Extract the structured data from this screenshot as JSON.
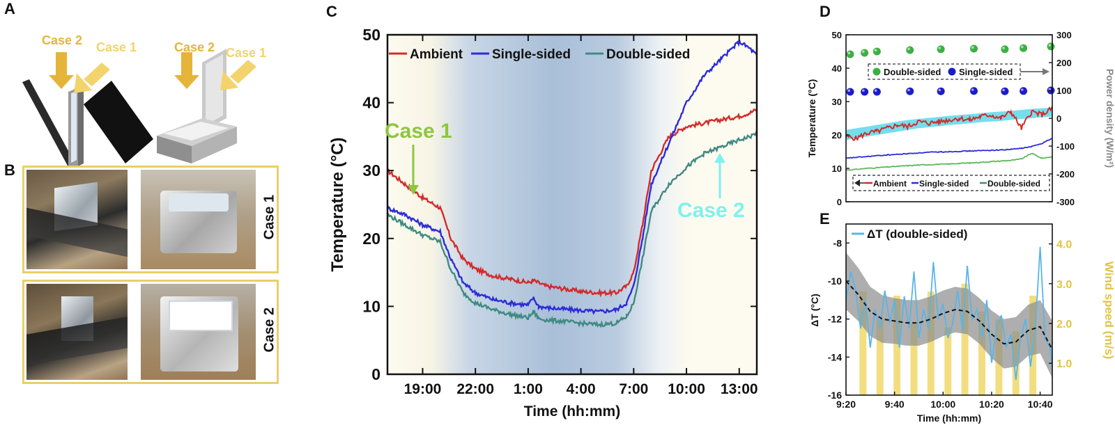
{
  "panels": {
    "a": {
      "label": "A",
      "left_case2": "Case 2",
      "left_case1": "Case 1",
      "right_case2": "Case 2",
      "right_case1": "Case 1"
    },
    "b": {
      "label": "B",
      "case1": "Case 1",
      "case2": "Case 2"
    },
    "c": {
      "label": "C"
    },
    "d": {
      "label": "D"
    },
    "e": {
      "label": "E"
    }
  },
  "colors": {
    "ambient": "#d42a2a",
    "single": "#2b2bd9",
    "double": "#3f8a82",
    "case1": "#8dc63f",
    "case2": "#7ff0f0",
    "arrow_gold": "#e5b53a",
    "arrow_light": "#f3d36b",
    "green_dot": "#3cb043",
    "blue_dot": "#1c1cc8",
    "band_cyan": "#59d9e9",
    "delta": "#5ab4e8",
    "wind": "#f2de80",
    "frame": "#e8cf6a"
  },
  "chart_data": [
    {
      "id": "C",
      "type": "line",
      "xlabel": "Time (hh:mm)",
      "ylabel": "Temperature (°C)",
      "ylim": [
        0,
        50
      ],
      "yticks": [
        "0",
        "10",
        "20",
        "30",
        "40",
        "50"
      ],
      "xticks": [
        "19:00",
        "22:00",
        "1:00",
        "4:00",
        "7:00",
        "10:00",
        "13:00"
      ],
      "xtick_hours": [
        19,
        22,
        25,
        28,
        31,
        34,
        37
      ],
      "xlim_hours": [
        17,
        38
      ],
      "legend": [
        "Ambient",
        "Single-sided",
        "Double-sided"
      ],
      "annotations": [
        {
          "text": "Case 1",
          "x_hours": 18.8,
          "y": 25
        },
        {
          "text": "Case 2",
          "x_hours": 37.0,
          "y": 34
        }
      ],
      "series": [
        {
          "name": "Ambient",
          "x": [
            17,
            18,
            19,
            20,
            20.6,
            21.3,
            22,
            23,
            24,
            25,
            25.3,
            26,
            27,
            28,
            29,
            30,
            30.6,
            31,
            31.5,
            32,
            33,
            34,
            35,
            36,
            37,
            37.6,
            38
          ],
          "y": [
            30,
            28,
            26,
            24.5,
            20,
            17,
            15.5,
            14.5,
            14,
            13.5,
            13.8,
            13,
            12.6,
            12.2,
            12,
            12,
            13,
            15,
            22,
            30,
            35,
            36.5,
            37,
            37.5,
            38,
            38.5,
            39
          ]
        },
        {
          "name": "Single-sided",
          "x": [
            17,
            18,
            19,
            20,
            20.6,
            21.3,
            22,
            23,
            24,
            25,
            25.3,
            25.6,
            26,
            27,
            28,
            29,
            30,
            30.6,
            31,
            31.5,
            32,
            33,
            34,
            35,
            36,
            36.6,
            37,
            37.6,
            38
          ],
          "y": [
            24.5,
            23.5,
            22,
            21,
            17,
            13.5,
            12,
            11,
            10.5,
            10.2,
            11.2,
            10,
            9.8,
            9.6,
            9.4,
            9.2,
            9.5,
            10.5,
            13,
            20,
            28,
            34,
            40,
            44,
            46.5,
            48,
            49,
            48,
            47
          ]
        },
        {
          "name": "Double-sided",
          "x": [
            17,
            18,
            19,
            20,
            20.6,
            21.3,
            22,
            23,
            24,
            25,
            25.3,
            25.6,
            26,
            27,
            28,
            29,
            30,
            30.6,
            31,
            31.5,
            32,
            33,
            34,
            35,
            36,
            37,
            37.6,
            38
          ],
          "y": [
            23.5,
            22,
            20.5,
            19.5,
            15.5,
            12,
            10.5,
            9.5,
            8.8,
            8.3,
            9.2,
            8.2,
            8,
            7.8,
            7.5,
            7.3,
            7.5,
            8.5,
            10.5,
            17,
            24,
            28,
            30.5,
            32.5,
            33.5,
            34.5,
            35,
            35.5
          ]
        }
      ]
    },
    {
      "id": "D",
      "type": "line",
      "ylabel": "Temperature (°C)",
      "y2label": "Power density (W/m²)",
      "ylim": [
        0,
        50
      ],
      "y2lim": [
        -300,
        300
      ],
      "yticks": [
        "0",
        "10",
        "20",
        "30",
        "40",
        "50"
      ],
      "y2ticks": [
        "-300",
        "-200",
        "-100",
        "0",
        "100",
        "200",
        "300"
      ],
      "legend_top": [
        "Double-sided",
        "Single-sided"
      ],
      "legend_bottom": [
        "Ambient",
        "Single-sided",
        "Double-sided"
      ],
      "x": [
        0,
        0.05,
        0.1,
        0.15,
        0.2,
        0.25,
        0.3,
        0.35,
        0.4,
        0.45,
        0.5,
        0.55,
        0.6,
        0.65,
        0.7,
        0.75,
        0.8,
        0.85,
        0.9,
        0.95,
        1.0
      ],
      "series": [
        {
          "name": "Ambient",
          "y": [
            19.5,
            19,
            20.5,
            21,
            22,
            23,
            22.5,
            24,
            23.5,
            24,
            24.5,
            25,
            24.5,
            25.5,
            26,
            25,
            27,
            22,
            27,
            26,
            28
          ]
        },
        {
          "name": "Single-sided",
          "y": [
            13,
            13.3,
            13.5,
            13.8,
            14,
            14.2,
            14.4,
            14.6,
            14.8,
            14.9,
            15,
            15.1,
            15.2,
            15.3,
            15.4,
            15.5,
            15.7,
            16,
            16.5,
            17.5,
            19
          ]
        },
        {
          "name": "Double-sided",
          "y": [
            9.5,
            9.7,
            10,
            10.2,
            10.4,
            10.6,
            10.8,
            11,
            11.1,
            11.2,
            11.3,
            11.5,
            11.6,
            11.8,
            12,
            12.2,
            12.4,
            12.8,
            14.5,
            13,
            13.5
          ]
        },
        {
          "name": "Ambient band",
          "y_low": [
            18.5,
            19,
            19.5,
            20,
            20.5,
            21,
            21.5,
            22,
            22.3,
            22.6,
            23,
            23.2,
            23.5,
            23.8,
            24,
            24.2,
            24.5,
            24.8,
            25,
            25.3,
            25.5
          ],
          "y_high": [
            21.5,
            22,
            22.5,
            23,
            23.5,
            24,
            24.5,
            24.8,
            25.1,
            25.4,
            25.7,
            26,
            26.2,
            26.5,
            26.8,
            27,
            27.2,
            27.5,
            27.8,
            28,
            28.2
          ]
        },
        {
          "name": "Double-sided power",
          "axis": "y2",
          "x": [
            0,
            0.09,
            0.15,
            0.31,
            0.46,
            0.62,
            0.77,
            0.86,
            1.0
          ],
          "y": [
            230,
            235,
            240,
            245,
            248,
            250,
            248,
            252,
            258
          ]
        },
        {
          "name": "Single-sided power",
          "axis": "y2",
          "x": [
            0,
            0.09,
            0.15,
            0.31,
            0.46,
            0.62,
            0.77,
            0.86,
            1.0
          ],
          "y": [
            95,
            95,
            95,
            97,
            97,
            98,
            97,
            98,
            100
          ]
        }
      ]
    },
    {
      "id": "E",
      "type": "line",
      "xlabel": "Time (hh:mm)",
      "ylabel": "ΔT (°C)",
      "y2label": "Wind speed (m/s)",
      "ylim": [
        -16,
        -7
      ],
      "yticks": [
        "-16",
        "-14",
        "-12",
        "-10",
        "-8"
      ],
      "y2lim": [
        0.2,
        4.5
      ],
      "y2ticks": [
        "1.0",
        "2.0",
        "3.0",
        "4.0"
      ],
      "xticks": [
        "9:20",
        "9:40",
        "10:00",
        "10:20",
        "10:40"
      ],
      "xtick_min": [
        0,
        20,
        40,
        60,
        80
      ],
      "xlim_min": [
        0,
        85
      ],
      "legend": [
        "ΔT (double-sided)"
      ],
      "fit_x": [
        0,
        5,
        10,
        15,
        20,
        25,
        30,
        35,
        40,
        45,
        50,
        55,
        60,
        65,
        70,
        75,
        80,
        85
      ],
      "fit_y": [
        -10.0,
        -10.7,
        -11.6,
        -12.0,
        -12.1,
        -12.2,
        -12.2,
        -12.0,
        -11.7,
        -11.5,
        -11.6,
        -12.1,
        -12.8,
        -13.3,
        -13.2,
        -12.6,
        -12.4,
        -13.6
      ],
      "band_halfwidth": [
        1.5,
        1.4,
        1.3,
        1.25,
        1.2,
        1.2,
        1.2,
        1.2,
        1.2,
        1.2,
        1.2,
        1.2,
        1.25,
        1.3,
        1.3,
        1.35,
        1.4,
        1.5
      ],
      "delta_x": [
        0,
        2,
        4,
        6,
        8,
        10,
        12,
        14,
        16,
        18,
        20,
        22,
        24,
        26,
        28,
        30,
        32,
        34,
        36,
        38,
        40,
        42,
        44,
        46,
        48,
        50,
        52,
        54,
        56,
        58,
        60,
        62,
        64,
        66,
        68,
        70,
        72,
        74,
        76,
        78,
        80,
        82,
        84,
        85
      ],
      "delta_y": [
        -11,
        -9.5,
        -10.5,
        -12.5,
        -11,
        -13.5,
        -11.5,
        -12.5,
        -10.5,
        -12.2,
        -11,
        -13.5,
        -10.8,
        -12.5,
        -9.5,
        -13,
        -11.5,
        -12.5,
        -9,
        -12,
        -11.2,
        -13,
        -12.2,
        -10.5,
        -12.6,
        -9.2,
        -12,
        -11.5,
        -13,
        -11,
        -14.3,
        -12.5,
        -11.8,
        -13.5,
        -12.8,
        -15.2,
        -13,
        -12,
        -14.5,
        -12.5,
        -8.2,
        -13,
        -13.5,
        -14.5
      ],
      "wind_x": [
        7,
        14,
        21,
        28,
        35,
        42,
        49,
        56,
        63,
        70,
        77
      ],
      "wind_y": [
        2.8,
        2.1,
        2.7,
        2.0,
        2.8,
        1.9,
        3.0,
        2.3,
        2.1,
        1.8,
        2.7
      ]
    }
  ]
}
